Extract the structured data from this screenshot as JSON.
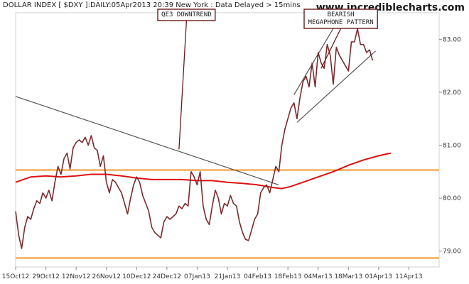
{
  "header": {
    "title": "DOLLAR INDEX [ $DXY ]:DAILY:05Apr2013 20:39 New York : Data Delayed > 15mins",
    "watermark": "www.incrediblecharts.com"
  },
  "colors": {
    "price": "#7a2b2b",
    "moving_average": "#dd1111",
    "support_resistance": "#f0962c",
    "trendline": "#555555",
    "annotation_border": "#6b1a1a"
  },
  "chart_data": {
    "type": "line",
    "title": "DOLLAR INDEX [ $DXY ]:DAILY:05Apr2013 20:39 New York : Data Delayed > 15mins",
    "xlabel": "",
    "ylabel": "",
    "ylim": [
      78.7,
      83.5
    ],
    "xlim": [
      0,
      140
    ],
    "grid": false,
    "x_ticks": [
      {
        "x": 0,
        "label": "15Oct12"
      },
      {
        "x": 10,
        "label": "29Oct12"
      },
      {
        "x": 20,
        "label": "12Nov12"
      },
      {
        "x": 30,
        "label": "26Nov12"
      },
      {
        "x": 40,
        "label": "10Dec12"
      },
      {
        "x": 50,
        "label": "24Dec12"
      },
      {
        "x": 60,
        "label": "07Jan13"
      },
      {
        "x": 70,
        "label": "21Jan13"
      },
      {
        "x": 80,
        "label": "04Feb13"
      },
      {
        "x": 90,
        "label": "18Feb13"
      },
      {
        "x": 100,
        "label": "04Mar13"
      },
      {
        "x": 110,
        "label": "18Mar13"
      },
      {
        "x": 120,
        "label": "01Apr13"
      },
      {
        "x": 130,
        "label": "11Apr13"
      }
    ],
    "y_ticks": [
      79.0,
      80.0,
      81.0,
      82.0,
      83.0
    ],
    "series": [
      {
        "kind": "price",
        "points": [
          [
            0,
            79.75
          ],
          [
            1,
            79.3
          ],
          [
            2,
            79.05
          ],
          [
            3,
            79.45
          ],
          [
            4,
            79.65
          ],
          [
            5,
            79.6
          ],
          [
            6,
            79.8
          ],
          [
            7,
            79.95
          ],
          [
            8,
            79.9
          ],
          [
            9,
            80.1
          ],
          [
            10,
            80.0
          ],
          [
            11,
            80.15
          ],
          [
            12,
            79.95
          ],
          [
            13,
            80.3
          ],
          [
            14,
            80.6
          ],
          [
            15,
            80.45
          ],
          [
            16,
            80.75
          ],
          [
            17,
            80.85
          ],
          [
            18,
            80.55
          ],
          [
            19,
            80.95
          ],
          [
            20,
            81.05
          ],
          [
            21,
            81.1
          ],
          [
            22,
            81.05
          ],
          [
            23,
            81.15
          ],
          [
            24,
            81.0
          ],
          [
            25,
            81.18
          ],
          [
            26,
            80.95
          ],
          [
            27,
            80.9
          ],
          [
            28,
            80.6
          ],
          [
            29,
            80.8
          ],
          [
            30,
            80.3
          ],
          [
            31,
            80.1
          ],
          [
            32,
            80.35
          ],
          [
            33,
            80.3
          ],
          [
            34,
            80.2
          ],
          [
            35,
            80.1
          ],
          [
            36,
            79.9
          ],
          [
            37,
            79.7
          ],
          [
            38,
            80.0
          ],
          [
            39,
            80.25
          ],
          [
            40,
            80.4
          ],
          [
            41,
            80.3
          ],
          [
            42,
            80.05
          ],
          [
            43,
            79.9
          ],
          [
            44,
            79.75
          ],
          [
            45,
            79.45
          ],
          [
            46,
            79.35
          ],
          [
            47,
            79.3
          ],
          [
            48,
            79.25
          ],
          [
            49,
            79.55
          ],
          [
            50,
            79.65
          ],
          [
            51,
            79.6
          ],
          [
            52,
            79.65
          ],
          [
            53,
            79.7
          ],
          [
            54,
            79.85
          ],
          [
            55,
            79.8
          ],
          [
            56,
            79.9
          ],
          [
            57,
            79.85
          ],
          [
            58,
            80.5
          ],
          [
            59,
            80.4
          ],
          [
            60,
            80.25
          ],
          [
            61,
            80.5
          ],
          [
            62,
            79.85
          ],
          [
            63,
            79.6
          ],
          [
            64,
            79.5
          ],
          [
            65,
            79.85
          ],
          [
            66,
            80.15
          ],
          [
            67,
            80.0
          ],
          [
            68,
            79.7
          ],
          [
            69,
            79.9
          ],
          [
            70,
            79.85
          ],
          [
            71,
            80.05
          ],
          [
            72,
            79.9
          ],
          [
            73,
            79.85
          ],
          [
            74,
            79.55
          ],
          [
            75,
            79.35
          ],
          [
            76,
            79.22
          ],
          [
            77,
            79.2
          ],
          [
            78,
            79.4
          ],
          [
            79,
            79.6
          ],
          [
            80,
            79.7
          ],
          [
            81,
            80.1
          ],
          [
            82,
            80.2
          ],
          [
            83,
            80.25
          ],
          [
            84,
            80.1
          ],
          [
            85,
            80.35
          ],
          [
            86,
            80.6
          ],
          [
            87,
            80.5
          ],
          [
            88,
            81.0
          ],
          [
            89,
            81.3
          ],
          [
            90,
            81.5
          ],
          [
            91,
            81.7
          ],
          [
            92,
            81.8
          ],
          [
            93,
            81.5
          ],
          [
            94,
            81.9
          ],
          [
            95,
            82.2
          ],
          [
            96,
            82.3
          ],
          [
            97,
            82.1
          ],
          [
            98,
            82.55
          ],
          [
            99,
            82.1
          ],
          [
            100,
            82.75
          ],
          [
            101,
            82.55
          ],
          [
            102,
            82.45
          ],
          [
            103,
            82.9
          ],
          [
            104,
            82.7
          ],
          [
            105,
            82.15
          ],
          [
            106,
            82.85
          ],
          [
            107,
            82.7
          ],
          [
            108,
            82.6
          ],
          [
            109,
            82.5
          ],
          [
            110,
            82.4
          ],
          [
            111,
            82.95
          ],
          [
            112,
            82.95
          ],
          [
            113,
            83.2
          ],
          [
            114,
            82.9
          ],
          [
            115,
            82.9
          ],
          [
            116,
            82.75
          ],
          [
            117,
            82.8
          ],
          [
            118,
            82.6
          ]
        ]
      },
      {
        "kind": "moving_average",
        "points": [
          [
            0,
            80.3
          ],
          [
            5,
            80.4
          ],
          [
            10,
            80.42
          ],
          [
            15,
            80.4
          ],
          [
            20,
            80.42
          ],
          [
            25,
            80.45
          ],
          [
            30,
            80.45
          ],
          [
            35,
            80.42
          ],
          [
            40,
            80.38
          ],
          [
            45,
            80.35
          ],
          [
            50,
            80.35
          ],
          [
            55,
            80.35
          ],
          [
            60,
            80.33
          ],
          [
            65,
            80.33
          ],
          [
            70,
            80.3
          ],
          [
            75,
            80.28
          ],
          [
            80,
            80.25
          ],
          [
            85,
            80.2
          ],
          [
            88,
            80.18
          ],
          [
            91,
            80.22
          ],
          [
            95,
            80.3
          ],
          [
            100,
            80.4
          ],
          [
            105,
            80.5
          ],
          [
            110,
            80.62
          ],
          [
            115,
            80.72
          ],
          [
            120,
            80.8
          ],
          [
            124,
            80.85
          ]
        ]
      }
    ],
    "horizontal_lines": [
      {
        "kind": "resistance",
        "y": 80.53
      },
      {
        "kind": "support",
        "y": 78.87
      }
    ],
    "trendlines": [
      {
        "kind": "downtrend",
        "from": [
          0,
          81.92
        ],
        "to": [
          87,
          80.25
        ]
      },
      {
        "kind": "megaphone_upper",
        "from": [
          92,
          81.95
        ],
        "to": [
          106,
          83.3
        ]
      },
      {
        "kind": "megaphone_lower",
        "from": [
          93,
          81.43
        ],
        "to": [
          119,
          82.78
        ]
      }
    ],
    "annotations": [
      {
        "id": "qe3",
        "lines": [
          "QE3 DOWNTREND"
        ],
        "anchor_x": 54,
        "anchor_y": 80.92
      },
      {
        "id": "megaphone",
        "lines": [
          "BEARISH",
          "MEGAPHONE PATTERN"
        ],
        "anchor_x": 101,
        "anchor_y": 82.45
      }
    ]
  }
}
